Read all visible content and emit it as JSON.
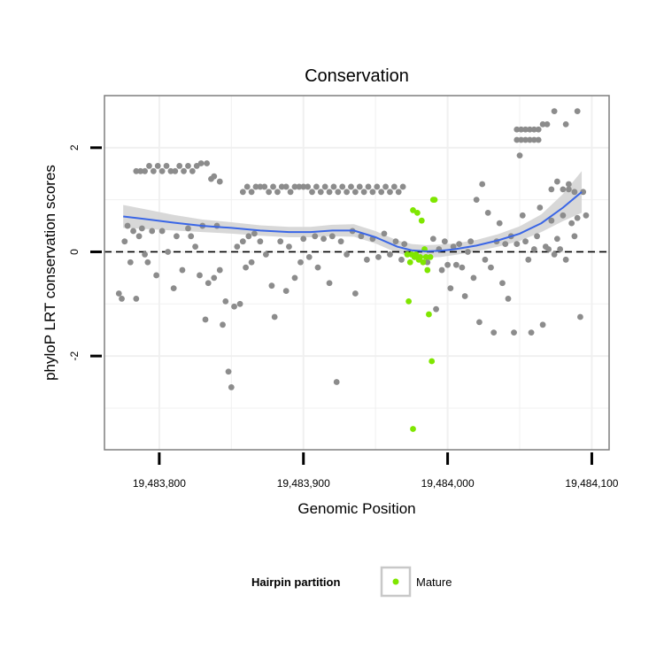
{
  "chart_data": {
    "type": "scatter",
    "title": "Conservation",
    "xlabel": "Genomic Position",
    "ylabel": "phyloP LRT conservation scores",
    "xlim": [
      19483762,
      19484112
    ],
    "ylim": [
      -3.8,
      3.0
    ],
    "x_ticks": [
      19483800,
      19483900,
      19484000,
      19484100
    ],
    "x_tick_labels": [
      "19,483,800",
      "19,483,900",
      "19,484,000",
      "19,484,100"
    ],
    "y_ticks": [
      -2,
      0,
      2
    ],
    "y_tick_labels": [
      "-2",
      "0",
      "2"
    ],
    "grid": true,
    "reference_line": {
      "y": 0,
      "style": "dashed"
    },
    "legend": {
      "title": "Hairpin partition",
      "position": "bottom",
      "entries": [
        {
          "name": "Mature",
          "color": "#7fe600"
        }
      ]
    },
    "colors": {
      "other": "#8c8c8c",
      "mature": "#7fe600",
      "smooth": "#3a66e6",
      "band": "#d4d4d4",
      "panel_border": "#7f7f7f",
      "grid": "#f0f0f0"
    },
    "series": [
      {
        "name": "",
        "color": "#8c8c8c",
        "points": [
          [
            19483772,
            -0.8
          ],
          [
            19483774,
            -0.9
          ],
          [
            19483776,
            0.2
          ],
          [
            19483778,
            0.5
          ],
          [
            19483780,
            -0.2
          ],
          [
            19483782,
            0.4
          ],
          [
            19483784,
            -0.9
          ],
          [
            19483786,
            0.3
          ],
          [
            19483788,
            0.45
          ],
          [
            19483790,
            -0.05
          ],
          [
            19483792,
            -0.2
          ],
          [
            19483795,
            0.4
          ],
          [
            19483798,
            -0.45
          ],
          [
            19483802,
            0.4
          ],
          [
            19483806,
            0.0
          ],
          [
            19483810,
            -0.7
          ],
          [
            19483812,
            0.3
          ],
          [
            19483816,
            -0.35
          ],
          [
            19483820,
            0.45
          ],
          [
            19483822,
            0.3
          ],
          [
            19483825,
            0.1
          ],
          [
            19483828,
            -0.45
          ],
          [
            19483830,
            0.5
          ],
          [
            19483832,
            -1.3
          ],
          [
            19483834,
            -0.6
          ],
          [
            19483836,
            1.4
          ],
          [
            19483838,
            -0.5
          ],
          [
            19483840,
            0.5
          ],
          [
            19483842,
            -0.35
          ],
          [
            19483844,
            -1.4
          ],
          [
            19483846,
            -0.95
          ],
          [
            19483848,
            -2.3
          ],
          [
            19483850,
            -2.6
          ],
          [
            19483852,
            -1.05
          ],
          [
            19483854,
            0.1
          ],
          [
            19483856,
            -1.0
          ],
          [
            19483858,
            0.2
          ],
          [
            19483860,
            -0.3
          ],
          [
            19483862,
            0.3
          ],
          [
            19483864,
            -0.2
          ],
          [
            19483866,
            0.35
          ],
          [
            19483870,
            0.2
          ],
          [
            19483874,
            -0.05
          ],
          [
            19483878,
            -0.65
          ],
          [
            19483880,
            -1.25
          ],
          [
            19483884,
            0.2
          ],
          [
            19483888,
            -0.75
          ],
          [
            19483890,
            0.1
          ],
          [
            19483894,
            -0.5
          ],
          [
            19483898,
            -0.2
          ],
          [
            19483900,
            0.25
          ],
          [
            19483904,
            -0.1
          ],
          [
            19483908,
            0.3
          ],
          [
            19483910,
            -0.3
          ],
          [
            19483914,
            0.25
          ],
          [
            19483918,
            -0.6
          ],
          [
            19483920,
            0.3
          ],
          [
            19483923,
            -2.5
          ],
          [
            19483926,
            0.2
          ],
          [
            19483930,
            -0.05
          ],
          [
            19483934,
            0.4
          ],
          [
            19483936,
            -0.8
          ],
          [
            19483940,
            0.3
          ],
          [
            19483944,
            -0.15
          ],
          [
            19483948,
            0.25
          ],
          [
            19483952,
            -0.1
          ],
          [
            19483956,
            0.35
          ],
          [
            19483960,
            -0.05
          ],
          [
            19483964,
            0.2
          ],
          [
            19483968,
            -0.15
          ],
          [
            19483970,
            0.15
          ],
          [
            19483986,
            -0.2
          ],
          [
            19483990,
            0.25
          ],
          [
            19483992,
            -1.1
          ],
          [
            19483994,
            0.05
          ],
          [
            19483996,
            -0.35
          ],
          [
            19483998,
            0.2
          ],
          [
            19484000,
            -0.25
          ],
          [
            19484002,
            -0.7
          ],
          [
            19484004,
            0.1
          ],
          [
            19484006,
            -0.25
          ],
          [
            19484008,
            0.15
          ],
          [
            19484010,
            -0.3
          ],
          [
            19484012,
            -0.85
          ],
          [
            19484014,
            0.0
          ],
          [
            19484016,
            0.2
          ],
          [
            19484018,
            -0.5
          ],
          [
            19484020,
            1.0
          ],
          [
            19484022,
            -1.35
          ],
          [
            19484024,
            1.3
          ],
          [
            19484026,
            -0.15
          ],
          [
            19484028,
            0.75
          ],
          [
            19484030,
            -0.3
          ],
          [
            19484032,
            -1.55
          ],
          [
            19484034,
            0.2
          ],
          [
            19484036,
            0.55
          ],
          [
            19484038,
            -0.6
          ],
          [
            19484040,
            0.15
          ],
          [
            19484042,
            -0.9
          ],
          [
            19484044,
            0.3
          ],
          [
            19484046,
            -1.55
          ],
          [
            19484048,
            0.15
          ],
          [
            19484050,
            1.85
          ],
          [
            19484052,
            0.7
          ],
          [
            19484054,
            0.2
          ],
          [
            19484056,
            -0.15
          ],
          [
            19484058,
            -1.55
          ],
          [
            19484060,
            0.05
          ],
          [
            19484062,
            0.3
          ],
          [
            19484064,
            0.85
          ],
          [
            19484066,
            -1.4
          ],
          [
            19484068,
            0.1
          ],
          [
            19484070,
            0.05
          ],
          [
            19484072,
            0.6
          ],
          [
            19484074,
            -0.05
          ],
          [
            19484076,
            0.25
          ],
          [
            19484078,
            0.05
          ],
          [
            19484080,
            0.7
          ],
          [
            19484082,
            -0.15
          ],
          [
            19484084,
            1.2
          ],
          [
            19484086,
            0.55
          ],
          [
            19484088,
            0.3
          ],
          [
            19484090,
            0.65
          ],
          [
            19484092,
            -1.25
          ],
          [
            19484094,
            1.15
          ],
          [
            19484096,
            0.7
          ],
          [
            19483784,
            1.55
          ],
          [
            19483787,
            1.55
          ],
          [
            19483790,
            1.55
          ],
          [
            19483793,
            1.65
          ],
          [
            19483796,
            1.55
          ],
          [
            19483799,
            1.65
          ],
          [
            19483802,
            1.55
          ],
          [
            19483805,
            1.65
          ],
          [
            19483808,
            1.55
          ],
          [
            19483811,
            1.55
          ],
          [
            19483814,
            1.65
          ],
          [
            19483817,
            1.55
          ],
          [
            19483820,
            1.65
          ],
          [
            19483823,
            1.55
          ],
          [
            19483826,
            1.65
          ],
          [
            19483829,
            1.7
          ],
          [
            19483833,
            1.7
          ],
          [
            19483838,
            1.45
          ],
          [
            19483842,
            1.35
          ],
          [
            19483858,
            1.15
          ],
          [
            19483861,
            1.25
          ],
          [
            19483864,
            1.15
          ],
          [
            19483867,
            1.25
          ],
          [
            19483870,
            1.25
          ],
          [
            19483873,
            1.25
          ],
          [
            19483876,
            1.15
          ],
          [
            19483879,
            1.25
          ],
          [
            19483882,
            1.15
          ],
          [
            19483885,
            1.25
          ],
          [
            19483888,
            1.25
          ],
          [
            19483891,
            1.15
          ],
          [
            19483894,
            1.25
          ],
          [
            19483897,
            1.25
          ],
          [
            19483900,
            1.25
          ],
          [
            19483903,
            1.25
          ],
          [
            19483906,
            1.15
          ],
          [
            19483909,
            1.25
          ],
          [
            19483912,
            1.15
          ],
          [
            19483915,
            1.25
          ],
          [
            19483918,
            1.15
          ],
          [
            19483921,
            1.25
          ],
          [
            19483924,
            1.15
          ],
          [
            19483927,
            1.25
          ],
          [
            19483930,
            1.15
          ],
          [
            19483933,
            1.25
          ],
          [
            19483936,
            1.15
          ],
          [
            19483939,
            1.25
          ],
          [
            19483942,
            1.15
          ],
          [
            19483945,
            1.25
          ],
          [
            19483948,
            1.15
          ],
          [
            19483951,
            1.25
          ],
          [
            19483954,
            1.15
          ],
          [
            19483957,
            1.25
          ],
          [
            19483960,
            1.15
          ],
          [
            19483963,
            1.25
          ],
          [
            19483966,
            1.15
          ],
          [
            19483969,
            1.25
          ],
          [
            19484048,
            2.35
          ],
          [
            19484051,
            2.35
          ],
          [
            19484054,
            2.35
          ],
          [
            19484057,
            2.35
          ],
          [
            19484060,
            2.35
          ],
          [
            19484063,
            2.35
          ],
          [
            19484048,
            2.15
          ],
          [
            19484051,
            2.15
          ],
          [
            19484054,
            2.15
          ],
          [
            19484057,
            2.15
          ],
          [
            19484060,
            2.15
          ],
          [
            19484063,
            2.15
          ],
          [
            19484066,
            2.45
          ],
          [
            19484069,
            2.45
          ],
          [
            19484074,
            2.7
          ],
          [
            19484082,
            2.45
          ],
          [
            19484090,
            2.7
          ],
          [
            19484072,
            1.2
          ],
          [
            19484076,
            1.35
          ],
          [
            19484080,
            1.2
          ],
          [
            19484084,
            1.3
          ],
          [
            19484088,
            1.15
          ]
        ]
      },
      {
        "name": "Mature",
        "color": "#7fe600",
        "points": [
          [
            19483972,
            -0.05
          ],
          [
            19483974,
            -0.2
          ],
          [
            19483976,
            0.8
          ],
          [
            19483977,
            -0.1
          ],
          [
            19483978,
            -0.05
          ],
          [
            19483979,
            0.75
          ],
          [
            19483980,
            -0.15
          ],
          [
            19483981,
            -0.1
          ],
          [
            19483982,
            0.6
          ],
          [
            19483983,
            -0.2
          ],
          [
            19483984,
            0.05
          ],
          [
            19483985,
            -0.1
          ],
          [
            19483986,
            -0.35
          ],
          [
            19483987,
            -1.2
          ],
          [
            19483988,
            -0.1
          ],
          [
            19483989,
            -2.1
          ],
          [
            19483990,
            1.0
          ],
          [
            19483991,
            1.0
          ],
          [
            19483975,
            -0.05
          ],
          [
            19483973,
            -0.95
          ],
          [
            19483976,
            -3.4
          ]
        ]
      }
    ],
    "smooth_line": {
      "x": [
        19483775,
        19483790,
        19483810,
        19483830,
        19483850,
        19483870,
        19483890,
        19483905,
        19483920,
        19483935,
        19483950,
        19483965,
        19483975,
        19483985,
        19483995,
        19484005,
        19484020,
        19484035,
        19484050,
        19484065,
        19484080,
        19484093
      ],
      "y": [
        0.68,
        0.63,
        0.56,
        0.5,
        0.46,
        0.41,
        0.38,
        0.38,
        0.41,
        0.41,
        0.28,
        0.1,
        0.03,
        0.01,
        0.02,
        0.05,
        0.12,
        0.22,
        0.35,
        0.55,
        0.85,
        1.15
      ],
      "band_half_width": [
        0.22,
        0.19,
        0.15,
        0.12,
        0.11,
        0.1,
        0.1,
        0.1,
        0.11,
        0.12,
        0.12,
        0.12,
        0.12,
        0.12,
        0.12,
        0.11,
        0.11,
        0.12,
        0.14,
        0.17,
        0.26,
        0.4
      ]
    }
  }
}
